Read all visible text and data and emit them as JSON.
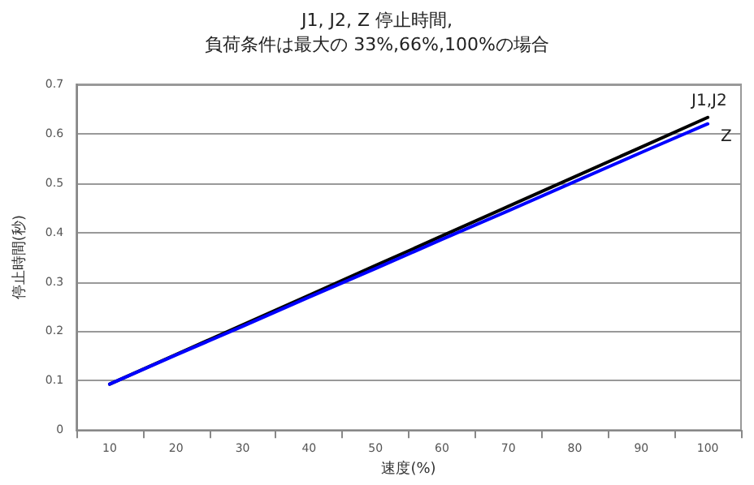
{
  "chart_data": {
    "type": "line",
    "title": "J1, J2, Z 停止時間,",
    "subtitle": "負荷条件は最大の 33%,66%,100%の場合",
    "xlabel": "速度(%)",
    "ylabel": "停止時間(秒)",
    "categories": [
      "10",
      "20",
      "30",
      "40",
      "50",
      "60",
      "70",
      "80",
      "90",
      "100"
    ],
    "series": [
      {
        "name": "J1,J2",
        "color": "#000000",
        "values": [
          0.093,
          0.153,
          0.213,
          0.273,
          0.333,
          0.393,
          0.453,
          0.513,
          0.573,
          0.633
        ]
      },
      {
        "name": "Z",
        "color": "#0000ff",
        "values": [
          0.093,
          0.152,
          0.21,
          0.269,
          0.327,
          0.386,
          0.444,
          0.503,
          0.562,
          0.62
        ]
      }
    ],
    "ylim": [
      0,
      0.7
    ],
    "yticks": [
      0,
      0.1,
      0.2,
      0.3,
      0.4,
      0.5,
      0.6,
      0.7
    ],
    "grid": "y",
    "legend": false,
    "marker": "none",
    "line_style": "solid"
  }
}
